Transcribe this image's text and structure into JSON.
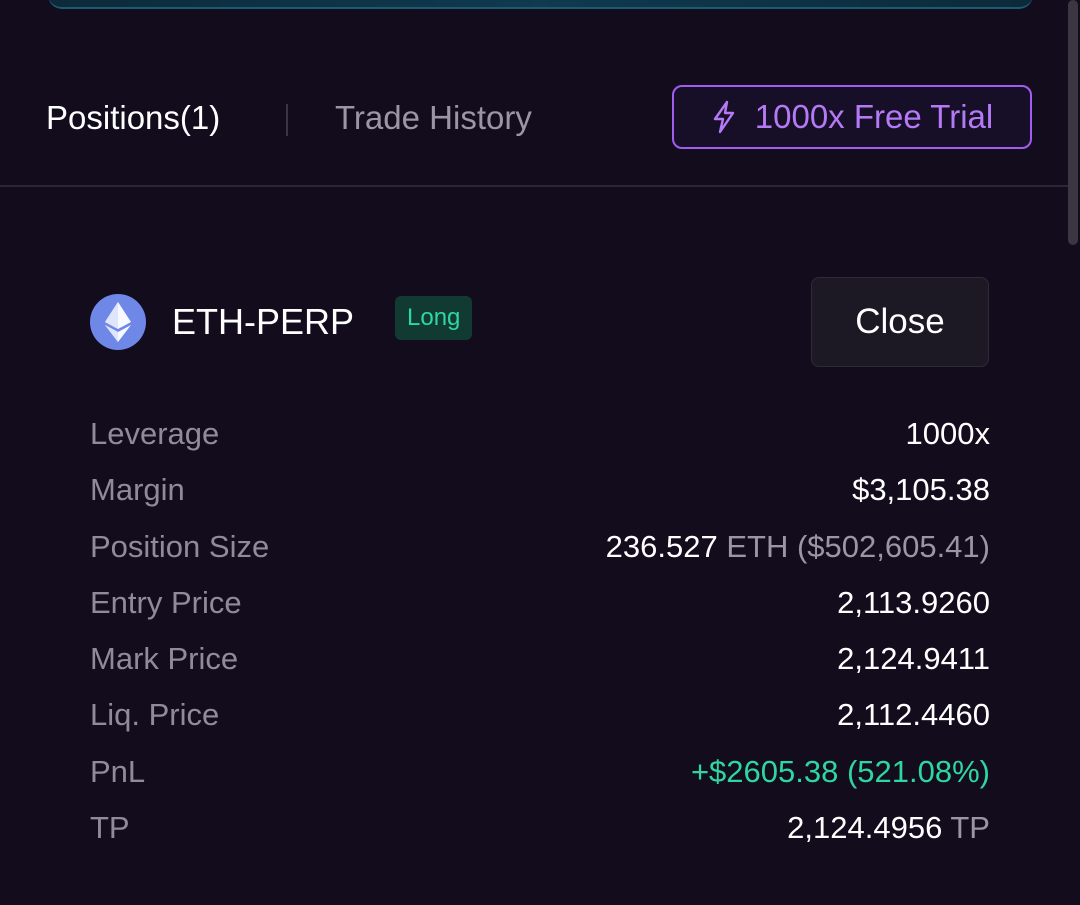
{
  "tabs": {
    "positions_label": "Positions(1)",
    "history_label": "Trade History"
  },
  "trial_button": {
    "label": "1000x Free Trial",
    "icon": "lightning-icon",
    "color": "#a25cf2"
  },
  "position": {
    "asset_icon": "ethereum-icon",
    "symbol": "ETH-PERP",
    "side": "Long",
    "close_label": "Close",
    "rows": [
      {
        "label": "Leverage",
        "value": "1000x"
      },
      {
        "label": "Margin",
        "value": "$3,105.38"
      },
      {
        "label": "Position Size",
        "value": "236.527",
        "unit": "ETH",
        "extra": "($502,605.41)"
      },
      {
        "label": "Entry Price",
        "value": "2,113.9260"
      },
      {
        "label": "Mark Price",
        "value": "2,124.9411"
      },
      {
        "label": "Liq. Price",
        "value": "2,112.4460"
      },
      {
        "label": "PnL",
        "value": "+$2605.38 (521.08%)"
      },
      {
        "label": "TP",
        "value": "2,124.4956",
        "unit": "TP"
      }
    ]
  },
  "colors": {
    "background": "#120c1d",
    "profit": "#2fd6a1",
    "accent": "#a25cf2"
  }
}
